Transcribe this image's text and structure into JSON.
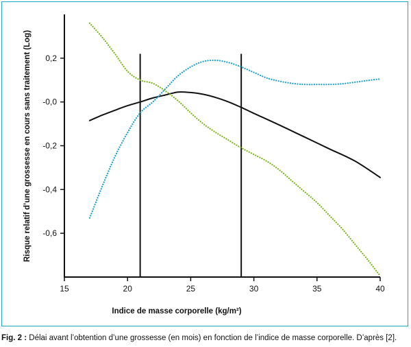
{
  "chart_data": {
    "type": "line",
    "xlabel": "Indice de masse corporelle (kg/m²)",
    "ylabel": "Risque relatif d’une grossesse en cours sans traitement (Log)",
    "xlim": [
      15,
      40
    ],
    "ylim": [
      -0.8,
      0.4
    ],
    "x_ticks": [
      15,
      20,
      25,
      30,
      35,
      40
    ],
    "y_ticks": [
      0.2,
      0.0,
      -0.2,
      -0.4,
      -0.6
    ],
    "y_tick_labels": [
      "0,2",
      "-0,0",
      "-0,2",
      "-0,4",
      "-0,6"
    ],
    "vertical_lines": [
      21,
      29
    ],
    "vertical_line_range": [
      -0.8,
      0.22
    ],
    "grid": false,
    "legend": "none",
    "series": [
      {
        "style": "solid",
        "color": "#111111",
        "x": [
          17,
          18,
          19,
          20,
          21,
          22,
          23,
          24,
          25,
          26,
          27,
          28,
          29,
          30,
          32,
          34,
          36,
          38,
          40
        ],
        "y": [
          -0.085,
          -0.06,
          -0.038,
          -0.017,
          0.0,
          0.018,
          0.032,
          0.045,
          0.043,
          0.035,
          0.02,
          0.0,
          -0.025,
          -0.052,
          -0.105,
          -0.16,
          -0.215,
          -0.27,
          -0.345
        ]
      },
      {
        "style": "dotted",
        "color": "#1aa0d0",
        "x": [
          17,
          18,
          19,
          20,
          21,
          22,
          23,
          24,
          25,
          26,
          27,
          28,
          29,
          30,
          31,
          32,
          33,
          34,
          35,
          36,
          37,
          38,
          39,
          40
        ],
        "y": [
          -0.53,
          -0.385,
          -0.25,
          -0.14,
          -0.05,
          0.0,
          0.06,
          0.12,
          0.16,
          0.185,
          0.19,
          0.18,
          0.16,
          0.135,
          0.11,
          0.095,
          0.085,
          0.08,
          0.08,
          0.08,
          0.083,
          0.09,
          0.098,
          0.105
        ]
      },
      {
        "style": "dotted",
        "color": "#7ab51d",
        "x": [
          17,
          18,
          19,
          20,
          21,
          22,
          23,
          24,
          25,
          26,
          27,
          28,
          29,
          30,
          31,
          32,
          33,
          34,
          35,
          36,
          37,
          38,
          39,
          40
        ],
        "y": [
          0.36,
          0.295,
          0.22,
          0.14,
          0.1,
          0.085,
          0.05,
          0.005,
          -0.05,
          -0.1,
          -0.14,
          -0.175,
          -0.21,
          -0.24,
          -0.27,
          -0.31,
          -0.36,
          -0.41,
          -0.46,
          -0.52,
          -0.58,
          -0.65,
          -0.72,
          -0.795
        ]
      }
    ]
  },
  "caption": {
    "label": "Fig. 2 :",
    "text": " Délai avant l’obtention d’une grossesse (en mois) en fonction de l’indice de masse corporelle. D’après [2]."
  }
}
